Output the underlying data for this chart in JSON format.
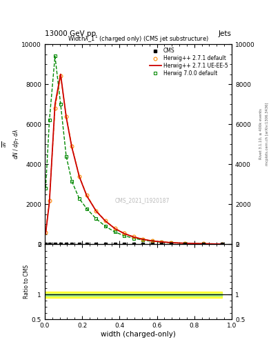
{
  "title_top": "13000 GeV pp",
  "title_right": "Jets",
  "xlabel": "width (charged-only)",
  "ylabel_ratio": "Ratio to CMS",
  "watermark": "CMS_2021_I1920187",
  "right_label1": "Rivet 3.1.10, ≥ 400k events",
  "right_label2": "mcplots.cern.ch [arXiv:1306.3436]",
  "xlim": [
    0,
    1
  ],
  "ylim_main": [
    0,
    10000
  ],
  "ylim_ratio": [
    0.5,
    2.0
  ],
  "yticks_main": [
    0,
    2000,
    4000,
    6000,
    8000,
    10000
  ],
  "herwig271_x": [
    0.005,
    0.025,
    0.055,
    0.085,
    0.115,
    0.145,
    0.185,
    0.225,
    0.275,
    0.325,
    0.375,
    0.425,
    0.475,
    0.525,
    0.575,
    0.625,
    0.675,
    0.75,
    0.85,
    0.95
  ],
  "herwig271_y": [
    600,
    2200,
    6800,
    8400,
    6400,
    4900,
    3400,
    2450,
    1680,
    1180,
    800,
    550,
    380,
    260,
    178,
    128,
    90,
    58,
    36,
    18
  ],
  "herwig271ue_x": [
    0.005,
    0.025,
    0.055,
    0.085,
    0.115,
    0.145,
    0.185,
    0.225,
    0.275,
    0.325,
    0.375,
    0.425,
    0.475,
    0.525,
    0.575,
    0.625,
    0.675,
    0.75,
    0.85,
    0.95
  ],
  "herwig271ue_y": [
    550,
    2100,
    7000,
    8500,
    6350,
    4850,
    3380,
    2420,
    1660,
    1160,
    790,
    540,
    370,
    252,
    173,
    124,
    87,
    56,
    34,
    16
  ],
  "herwig700_x": [
    0.005,
    0.025,
    0.055,
    0.085,
    0.115,
    0.145,
    0.185,
    0.225,
    0.275,
    0.325,
    0.375,
    0.425,
    0.475,
    0.525,
    0.575,
    0.625,
    0.675,
    0.75,
    0.85,
    0.95
  ],
  "herwig700_y": [
    2800,
    6200,
    9400,
    7000,
    4400,
    3150,
    2280,
    1780,
    1280,
    900,
    620,
    435,
    305,
    215,
    150,
    112,
    78,
    50,
    32,
    15
  ],
  "cms_x": [
    0.005,
    0.025,
    0.055,
    0.085,
    0.115,
    0.145,
    0.185,
    0.225,
    0.275,
    0.325,
    0.375,
    0.425,
    0.475,
    0.525,
    0.575,
    0.625,
    0.675,
    0.75,
    0.85,
    0.95
  ],
  "cms_y": [
    0,
    0,
    0,
    0,
    0,
    0,
    0,
    0,
    0,
    0,
    0,
    0,
    0,
    0,
    0,
    0,
    0,
    0,
    0,
    0
  ],
  "color_cms": "#000000",
  "color_herwig271": "#FF8800",
  "color_herwig271ue": "#CC0000",
  "color_herwig700": "#008800",
  "bg_color": "#ffffff",
  "ratio_yellow_lo": 0.935,
  "ratio_yellow_hi": 1.055,
  "ratio_green_lo": 0.975,
  "ratio_green_hi": 1.015
}
